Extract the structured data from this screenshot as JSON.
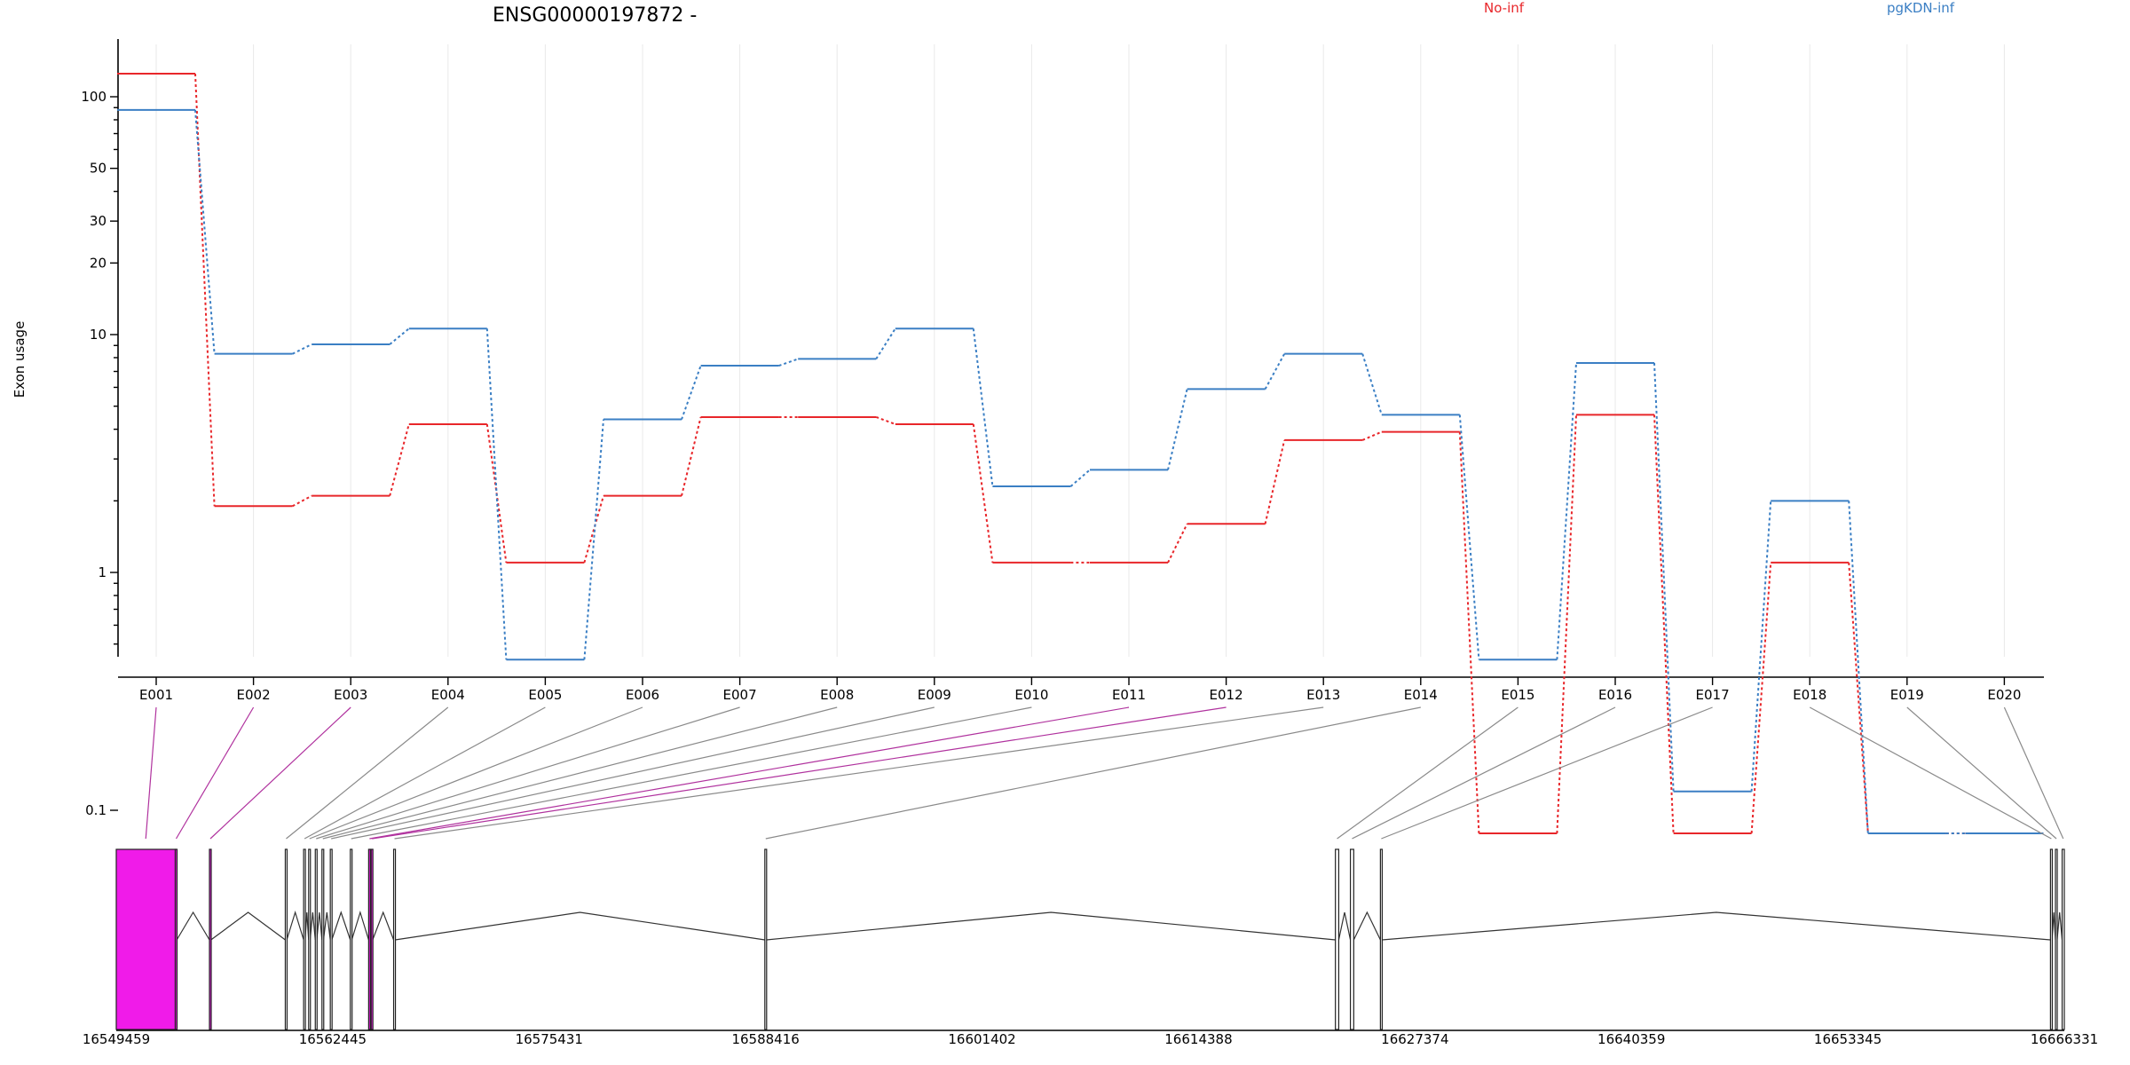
{
  "chart_data": {
    "type": "line",
    "title": "ENSG00000197872 -",
    "ylabel": "Exon usage",
    "yscale": "log",
    "grid": true,
    "legend_position": "top-right",
    "categories": [
      "E001",
      "E002",
      "E003",
      "E004",
      "E005",
      "E006",
      "E007",
      "E008",
      "E009",
      "E010",
      "E011",
      "E012",
      "E013",
      "E014",
      "E015",
      "E016",
      "E017",
      "E018",
      "E019",
      "E020"
    ],
    "y_ticks": [
      {
        "value": 0.1,
        "label": "0.1"
      },
      {
        "value": 1,
        "label": "1"
      },
      {
        "value": 10,
        "label": "10"
      },
      {
        "value": 20,
        "label": "20"
      },
      {
        "value": 30,
        "label": "30"
      },
      {
        "value": 50,
        "label": "50"
      },
      {
        "value": 100,
        "label": "100"
      }
    ],
    "series": [
      {
        "name": "No-inf",
        "color": "#e8262a",
        "values": [
          125,
          1.9,
          2.1,
          4.2,
          1.1,
          2.1,
          4.5,
          4.5,
          4.2,
          1.1,
          1.1,
          1.6,
          3.6,
          3.9,
          0.08,
          4.6,
          0.08,
          1.1,
          0.08,
          0.08
        ]
      },
      {
        "name": "pgKDN-inf",
        "color": "#3b7fc4",
        "values": [
          88,
          8.3,
          9.1,
          10.6,
          0.43,
          4.4,
          7.4,
          7.9,
          10.6,
          2.3,
          2.7,
          5.9,
          8.3,
          4.6,
          0.43,
          7.6,
          0.12,
          2.0,
          0.08,
          0.08
        ]
      }
    ],
    "gene_model": {
      "coord_labels": [
        "16549459",
        "16562445",
        "16575431",
        "16588416",
        "16601402",
        "16614388",
        "16627374",
        "16640359",
        "16653345",
        "16666331"
      ],
      "exons": [
        {
          "id": "E001",
          "start": 16549459,
          "end": 16553000,
          "highlight": true
        },
        {
          "id": "E002",
          "start": 16553000,
          "end": 16553090,
          "highlight": true
        },
        {
          "id": "E003",
          "start": 16555050,
          "end": 16555140,
          "highlight": true
        },
        {
          "id": "E004",
          "start": 16559600,
          "end": 16559690,
          "highlight": false
        },
        {
          "id": "E005",
          "start": 16560700,
          "end": 16560790,
          "highlight": false
        },
        {
          "id": "E006",
          "start": 16561000,
          "end": 16561090,
          "highlight": false
        },
        {
          "id": "E007",
          "start": 16561400,
          "end": 16561490,
          "highlight": false
        },
        {
          "id": "E008",
          "start": 16561800,
          "end": 16561890,
          "highlight": false
        },
        {
          "id": "E009",
          "start": 16562300,
          "end": 16562390,
          "highlight": false
        },
        {
          "id": "E010",
          "start": 16563500,
          "end": 16563590,
          "highlight": false
        },
        {
          "id": "E011",
          "start": 16564600,
          "end": 16564690,
          "highlight": true
        },
        {
          "id": "E012",
          "start": 16564750,
          "end": 16564840,
          "highlight": true
        },
        {
          "id": "E013",
          "start": 16566100,
          "end": 16566190,
          "highlight": false
        },
        {
          "id": "E014",
          "start": 16588370,
          "end": 16588470,
          "highlight": false
        },
        {
          "id": "E015",
          "start": 16622600,
          "end": 16622800,
          "highlight": false
        },
        {
          "id": "E016",
          "start": 16623500,
          "end": 16623700,
          "highlight": false
        },
        {
          "id": "E017",
          "start": 16625300,
          "end": 16625400,
          "highlight": false
        },
        {
          "id": "E018",
          "start": 16665500,
          "end": 16665600,
          "highlight": false
        },
        {
          "id": "E019",
          "start": 16665800,
          "end": 16665900,
          "highlight": false
        },
        {
          "id": "E020",
          "start": 16666200,
          "end": 16666331,
          "highlight": false
        }
      ]
    }
  }
}
